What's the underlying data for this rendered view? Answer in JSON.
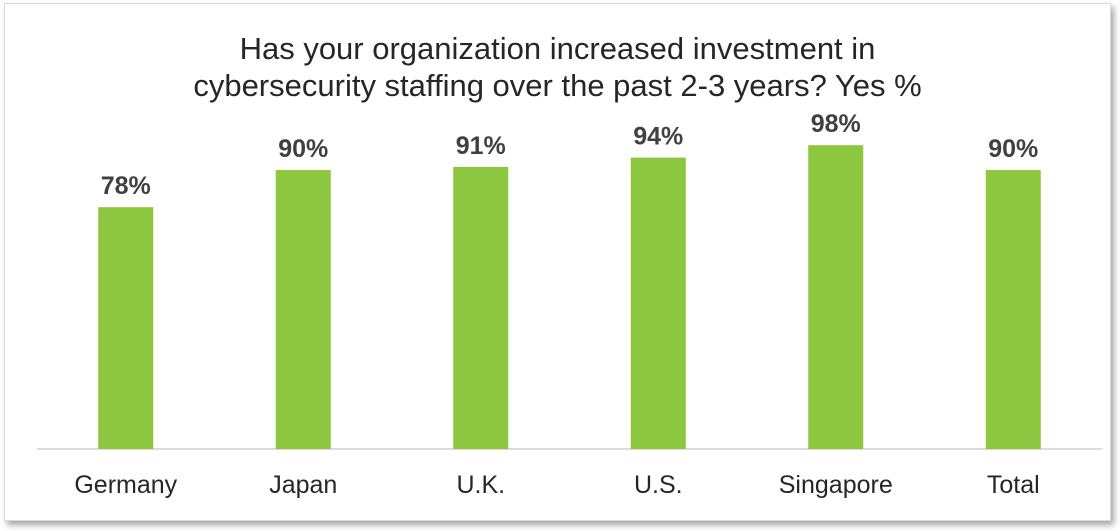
{
  "chart_data": {
    "type": "bar",
    "title_lines": [
      "Has your organization increased investment in",
      "cybersecurity staffing over the past 2-3 years? Yes %"
    ],
    "categories": [
      "Germany",
      "Japan",
      "U.K.",
      "U.S.",
      "Singapore",
      "Total"
    ],
    "values": [
      78,
      90,
      91,
      94,
      98,
      90
    ],
    "value_labels": [
      "78%",
      "90%",
      "91%",
      "94%",
      "98%",
      "90%"
    ],
    "ylim": [
      0,
      100
    ],
    "grid": false,
    "legend": "none",
    "bar_color": "#8dc63f",
    "label_color": "#404040",
    "tick_color": "#262626"
  }
}
